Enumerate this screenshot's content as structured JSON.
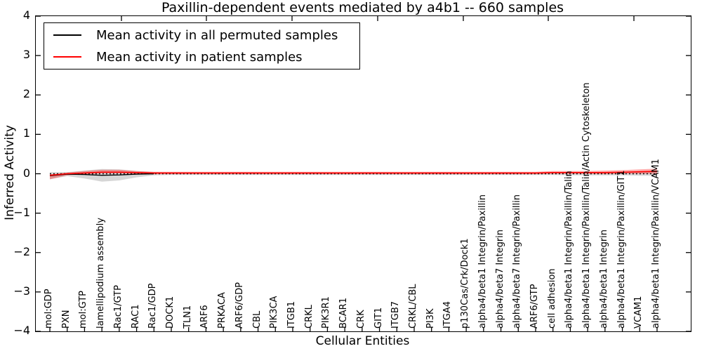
{
  "title": "Paxillin-dependent events mediated by a4b1 -- 660 samples",
  "axes": {
    "x_label": "Cellular Entities",
    "y_label": "Inferred Activity",
    "y_tick_labels": [
      "4",
      "3",
      "2",
      "1",
      "0",
      "−1",
      "−2",
      "−3",
      "−4"
    ]
  },
  "legend": {
    "items": [
      {
        "label": "Mean activity in all permuted samples",
        "color": "#000000"
      },
      {
        "label": "Mean activity in patient samples",
        "color": "#ff0000"
      }
    ]
  },
  "chart_data": {
    "type": "line",
    "title": "Paxillin-dependent events mediated by a4b1 -- 660 samples",
    "xlabel": "Cellular Entities",
    "ylabel": "Inferred Activity",
    "ylim": [
      -4,
      4
    ],
    "grid": false,
    "legend_position": "upper left",
    "zero_reference_line": {
      "y": 0,
      "style": "dotted",
      "color": "#000000"
    },
    "categories": [
      "mol:GDP",
      "PXN",
      "mol:GTP",
      "lamellipodium assembly",
      "Rac1/GTP",
      "RAC1",
      "Rac1/GDP",
      "DOCK1",
      "TLN1",
      "ARF6",
      "PRKACA",
      "ARF6/GDP",
      "CBL",
      "PIK3CA",
      "ITGB1",
      "CRKL",
      "PIK3R1",
      "BCAR1",
      "CRK",
      "GIT1",
      "ITGB7",
      "CRKL/CBL",
      "PI3K",
      "ITGA4",
      "p130Cas/Crk/Dock1",
      "alpha4/beta1 Integrin/Paxillin",
      "alpha4/beta7 Integrin",
      "alpha4/beta7 Integrin/Paxillin",
      "ARF6/GTP",
      "cell adhesion",
      "alpha4/beta1 Integrin/Paxillin/Talin",
      "alpha4/beta1 Integrin/Paxillin/Talin/Actin Cytoskeleton",
      "alpha4/beta1 Integrin",
      "alpha4/beta1 Integrin/Paxillin/GIT1",
      "VCAM1",
      "alpha4/beta1 Integrin/Paxillin/VCAM1"
    ],
    "series": [
      {
        "name": "Mean activity in all permuted samples",
        "color": "#000000",
        "linestyle": "solid",
        "band_color": "#aaaaaa",
        "values": [
          -0.05,
          -0.01,
          -0.02,
          -0.04,
          -0.03,
          -0.01,
          0,
          0,
          0,
          0,
          0,
          0,
          0,
          0,
          0,
          0,
          0,
          0,
          0,
          0,
          0,
          0,
          0,
          0,
          0,
          0,
          0,
          0,
          0,
          0,
          0,
          0,
          0,
          0,
          0,
          0
        ],
        "band_halfwidth": [
          0.09,
          0.05,
          0.1,
          0.16,
          0.14,
          0.08,
          0.04,
          0.03,
          0.03,
          0.03,
          0.03,
          0.03,
          0.03,
          0.03,
          0.03,
          0.03,
          0.03,
          0.03,
          0.03,
          0.03,
          0.03,
          0.03,
          0.03,
          0.03,
          0.03,
          0.03,
          0.03,
          0.03,
          0.03,
          0.03,
          0.04,
          0.04,
          0.04,
          0.04,
          0.05,
          0.05
        ]
      },
      {
        "name": "Mean activity in patient samples",
        "color": "#ff0000",
        "linestyle": "solid",
        "band_color": "#ff0000",
        "values": [
          -0.04,
          0.0,
          0.02,
          0.04,
          0.04,
          0.03,
          0.02,
          0.02,
          0.02,
          0.02,
          0.02,
          0.02,
          0.02,
          0.02,
          0.02,
          0.02,
          0.02,
          0.02,
          0.02,
          0.02,
          0.02,
          0.02,
          0.02,
          0.02,
          0.02,
          0.02,
          0.02,
          0.02,
          0.02,
          0.03,
          0.03,
          0.03,
          0.03,
          0.04,
          0.05,
          0.06
        ],
        "band_upper": [
          0.02,
          0.03,
          0.05,
          0.06,
          0.06,
          0.04,
          0.03,
          0.03,
          0.03,
          0.03,
          0.03,
          0.03,
          0.03,
          0.03,
          0.03,
          0.03,
          0.03,
          0.03,
          0.03,
          0.03,
          0.03,
          0.03,
          0.03,
          0.03,
          0.03,
          0.03,
          0.03,
          0.03,
          0.03,
          0.04,
          0.04,
          0.04,
          0.05,
          0.05,
          0.06,
          0.07
        ],
        "band_lower": [
          0.1,
          0.04,
          0.03,
          0.03,
          0.03,
          0.03,
          0.03,
          0.03,
          0.03,
          0.03,
          0.03,
          0.03,
          0.03,
          0.03,
          0.03,
          0.03,
          0.03,
          0.03,
          0.03,
          0.03,
          0.03,
          0.03,
          0.03,
          0.03,
          0.03,
          0.03,
          0.03,
          0.03,
          0.03,
          0.03,
          0.03,
          0.03,
          0.04,
          0.04,
          0.05,
          0.06
        ]
      }
    ]
  }
}
